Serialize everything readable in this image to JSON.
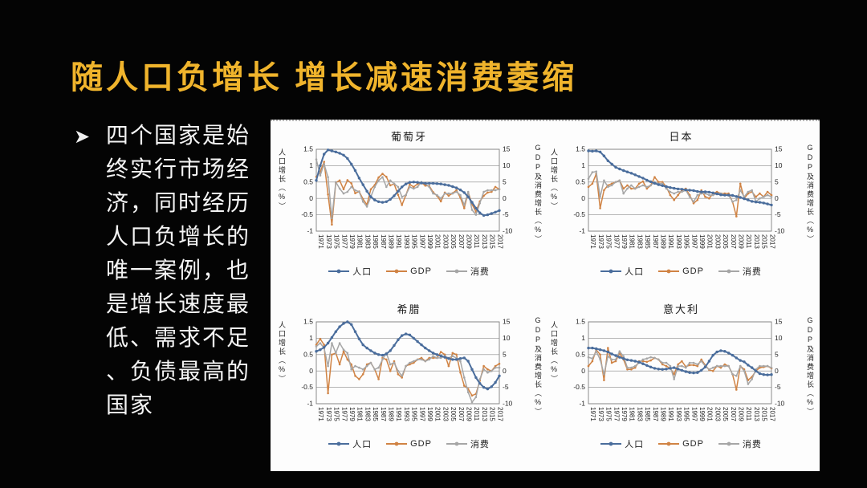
{
  "slide": {
    "title": "随人口负增长 增长减速消费萎缩",
    "note": {
      "bullet_icon": "arrow-bullet",
      "text": "四个国家是始终实行市场经济，同时经历人口负增长的唯一案例，也是增长速度最低、需求不足、负债最高的国家",
      "lines": [
        "四个国家是始",
        "终实行市场经",
        "济，同时经历",
        "人口负增长的",
        "唯一案例，也",
        "是增长速度最",
        "低、需求不足",
        "、负债最高的",
        "国家"
      ]
    }
  },
  "colors": {
    "background": "#040404",
    "title": "#F0B42C",
    "note_text": "#F4F4F4",
    "panel": "#FDFDFD",
    "pop": "#4A6D9C",
    "gdp": "#D08344",
    "cons": "#A6A6A6",
    "grid": "#8C8C8C",
    "frame": "#7F7F7F",
    "chart_text": "#222222"
  },
  "legend": {
    "pop": "人口",
    "gdp": "GDP",
    "cons": "消费"
  },
  "axes": {
    "left_label": "人口增长（%）",
    "right_label": "GDP及消费增长（%）",
    "left_ticks": [
      1.5,
      1,
      0.5,
      0,
      -0.5,
      -1
    ],
    "right_ticks": [
      15,
      10,
      5,
      0,
      -5,
      -10
    ],
    "left_ylim": [
      -1,
      1.5
    ],
    "right_ylim": [
      -10,
      15
    ],
    "x_start": 1971,
    "x_end": 2018,
    "x_ticks": [
      1971,
      1973,
      1975,
      1977,
      1979,
      1981,
      1983,
      1985,
      1987,
      1989,
      1991,
      1993,
      1995,
      1997,
      1999,
      2001,
      2003,
      2005,
      2007,
      2009,
      2011,
      2013,
      2015,
      2017
    ]
  },
  "chart_data": [
    {
      "type": "line",
      "title": "葡萄牙",
      "series": [
        {
          "name": "人口",
          "axis": "left",
          "color_key": "pop",
          "values": [
            0.55,
            1.0,
            1.35,
            1.48,
            1.45,
            1.42,
            1.38,
            1.32,
            1.22,
            1.05,
            0.85,
            0.62,
            0.42,
            0.22,
            0.05,
            -0.05,
            -0.1,
            -0.12,
            -0.1,
            -0.03,
            0.08,
            0.22,
            0.35,
            0.44,
            0.49,
            0.5,
            0.49,
            0.47,
            0.46,
            0.46,
            0.46,
            0.45,
            0.44,
            0.42,
            0.4,
            0.36,
            0.32,
            0.26,
            0.18,
            0.05,
            -0.12,
            -0.3,
            -0.44,
            -0.52,
            -0.5,
            -0.46,
            -0.42,
            -0.37
          ]
        },
        {
          "name": "GDP",
          "axis": "right",
          "color_key": "gdp",
          "values": [
            6.6,
            8.1,
            11.2,
            1.2,
            -8.0,
            4.8,
            5.5,
            2.8,
            5.6,
            4.6,
            1.6,
            2.1,
            -0.2,
            -1.9,
            2.8,
            4.1,
            6.4,
            7.5,
            6.6,
            4.0,
            4.4,
            1.1,
            -2.0,
            1.0,
            4.3,
            3.5,
            4.4,
            4.8,
            3.9,
            3.8,
            1.9,
            0.8,
            -0.9,
            1.8,
            0.8,
            1.6,
            2.5,
            0.2,
            -3.0,
            1.9,
            -1.8,
            -4.1,
            -0.9,
            0.8,
            1.8,
            2.0,
            3.5,
            2.8
          ]
        },
        {
          "name": "消费",
          "axis": "right",
          "color_key": "cons",
          "values": [
            11.9,
            7.0,
            10.5,
            6.5,
            -6.0,
            5.0,
            3.0,
            1.5,
            2.0,
            3.5,
            2.5,
            2.0,
            -1.0,
            -2.5,
            0.5,
            3.5,
            5.5,
            6.5,
            3.5,
            5.5,
            4.5,
            3.5,
            0.5,
            1.0,
            3.5,
            3.0,
            3.5,
            5.0,
            4.5,
            3.5,
            1.5,
            1.0,
            0.0,
            1.5,
            1.5,
            1.5,
            2.0,
            1.0,
            -2.0,
            2.0,
            -3.5,
            -5.0,
            -1.5,
            2.0,
            2.5,
            2.5,
            2.5,
            2.8
          ]
        }
      ]
    },
    {
      "type": "line",
      "title": "日本",
      "series": [
        {
          "name": "人口",
          "axis": "left",
          "color_key": "pop",
          "values": [
            1.45,
            1.44,
            1.45,
            1.42,
            1.3,
            1.15,
            1.05,
            0.95,
            0.9,
            0.85,
            0.81,
            0.77,
            0.72,
            0.67,
            0.62,
            0.56,
            0.51,
            0.46,
            0.42,
            0.39,
            0.36,
            0.33,
            0.31,
            0.29,
            0.28,
            0.26,
            0.25,
            0.24,
            0.21,
            0.2,
            0.2,
            0.19,
            0.17,
            0.14,
            0.11,
            0.1,
            0.1,
            0.09,
            0.06,
            0.03,
            -0.01,
            -0.05,
            -0.09,
            -0.11,
            -0.12,
            -0.14,
            -0.17,
            -0.2
          ]
        },
        {
          "name": "GDP",
          "axis": "right",
          "color_key": "gdp",
          "values": [
            3.5,
            4.5,
            7.5,
            -3.0,
            2.5,
            4.0,
            4.5,
            5.0,
            5.5,
            3.0,
            4.0,
            3.0,
            3.0,
            4.5,
            5.2,
            3.0,
            4.0,
            6.5,
            5.0,
            5.0,
            3.5,
            1.0,
            -0.5,
            1.0,
            2.5,
            3.0,
            1.0,
            -1.5,
            -0.5,
            2.5,
            0.5,
            0.0,
            1.5,
            2.0,
            1.5,
            1.5,
            1.5,
            -1.0,
            -5.5,
            4.5,
            0.0,
            1.5,
            2.0,
            0.5,
            1.5,
            0.5,
            2.0,
            1.0
          ]
        },
        {
          "name": "消费",
          "axis": "right",
          "color_key": "cons",
          "values": [
            6.0,
            8.0,
            8.2,
            0.5,
            5.5,
            3.5,
            4.0,
            5.0,
            5.5,
            1.5,
            3.0,
            4.0,
            3.0,
            3.5,
            4.0,
            3.5,
            4.0,
            5.0,
            4.5,
            4.5,
            3.0,
            2.0,
            1.5,
            2.0,
            2.0,
            2.5,
            0.5,
            -1.0,
            1.0,
            1.5,
            1.5,
            1.0,
            1.0,
            1.5,
            1.5,
            1.0,
            1.0,
            -1.0,
            -0.5,
            2.5,
            0.5,
            2.0,
            2.5,
            -1.0,
            0.0,
            0.5,
            1.0,
            0.5
          ]
        }
      ]
    },
    {
      "type": "line",
      "title": "希腊",
      "series": [
        {
          "name": "人口",
          "axis": "left",
          "color_key": "pop",
          "values": [
            0.6,
            0.65,
            0.72,
            0.85,
            1.02,
            1.2,
            1.35,
            1.45,
            1.5,
            1.42,
            1.2,
            0.98,
            0.8,
            0.7,
            0.62,
            0.55,
            0.5,
            0.48,
            0.52,
            0.62,
            0.78,
            0.95,
            1.08,
            1.13,
            1.1,
            1.0,
            0.9,
            0.8,
            0.7,
            0.62,
            0.55,
            0.5,
            0.46,
            0.42,
            0.38,
            0.35,
            0.35,
            0.38,
            0.4,
            0.3,
            0.05,
            -0.2,
            -0.38,
            -0.5,
            -0.55,
            -0.48,
            -0.35,
            -0.15
          ]
        },
        {
          "name": "GDP",
          "axis": "right",
          "color_key": "gdp",
          "values": [
            8.0,
            9.8,
            8.0,
            -6.8,
            5.0,
            5.5,
            2.0,
            6.0,
            3.5,
            2.0,
            -1.5,
            -2.5,
            -1.0,
            2.0,
            2.5,
            0.5,
            -2.5,
            4.0,
            3.5,
            0.0,
            3.0,
            -1.0,
            -2.0,
            1.5,
            2.0,
            2.5,
            3.5,
            4.0,
            3.0,
            4.0,
            4.0,
            4.0,
            5.8,
            5.0,
            1.5,
            5.5,
            5.0,
            -0.5,
            -4.5,
            -5.5,
            -7.5,
            -7.0,
            -3.0,
            1.5,
            0.5,
            0.0,
            1.5,
            2.2
          ]
        },
        {
          "name": "消费",
          "axis": "right",
          "color_key": "cons",
          "values": [
            7.5,
            8.5,
            7.0,
            1.5,
            8.5,
            5.5,
            8.5,
            6.5,
            5.5,
            0.5,
            1.5,
            1.0,
            0.5,
            1.5,
            2.5,
            0.5,
            1.0,
            3.5,
            5.5,
            2.0,
            2.5,
            0.0,
            -1.5,
            1.5,
            2.5,
            3.0,
            3.5,
            3.5,
            3.0,
            3.5,
            4.5,
            4.0,
            4.0,
            4.5,
            4.0,
            4.5,
            4.0,
            3.0,
            -2.0,
            -6.5,
            -9.5,
            -8.0,
            -2.5,
            0.5,
            -0.5,
            0.0,
            1.0,
            1.0
          ]
        }
      ]
    },
    {
      "type": "line",
      "title": "意大利",
      "series": [
        {
          "name": "人口",
          "axis": "left",
          "color_key": "pop",
          "values": [
            0.7,
            0.7,
            0.68,
            0.65,
            0.62,
            0.58,
            0.52,
            0.47,
            0.42,
            0.38,
            0.34,
            0.32,
            0.3,
            0.27,
            0.22,
            0.17,
            0.12,
            0.08,
            0.06,
            0.05,
            0.06,
            0.08,
            0.1,
            0.06,
            0.02,
            -0.02,
            -0.05,
            -0.06,
            -0.05,
            0.02,
            0.12,
            0.3,
            0.48,
            0.58,
            0.62,
            0.6,
            0.55,
            0.48,
            0.4,
            0.32,
            0.28,
            0.18,
            0.1,
            0.0,
            -0.08,
            -0.11,
            -0.12,
            -0.11
          ]
        },
        {
          "name": "GDP",
          "axis": "right",
          "color_key": "gdp",
          "values": [
            1.5,
            3.0,
            6.5,
            5.0,
            -2.8,
            7.0,
            2.5,
            3.0,
            5.5,
            3.5,
            0.5,
            0.5,
            1.0,
            3.0,
            3.0,
            2.8,
            3.2,
            4.0,
            3.5,
            2.0,
            1.5,
            0.8,
            -1.0,
            2.0,
            3.0,
            1.3,
            1.8,
            1.8,
            1.5,
            3.5,
            1.8,
            0.3,
            0.0,
            1.5,
            1.0,
            2.0,
            1.5,
            -1.0,
            -5.7,
            1.5,
            0.5,
            -2.8,
            -1.8,
            0.0,
            1.0,
            1.2,
            1.5,
            0.8
          ]
        },
        {
          "name": "消费",
          "axis": "right",
          "color_key": "cons",
          "values": [
            4.2,
            3.8,
            6.0,
            3.5,
            -1.0,
            4.5,
            3.5,
            3.5,
            6.0,
            4.5,
            1.0,
            1.0,
            1.5,
            2.5,
            3.5,
            3.8,
            4.2,
            4.0,
            3.5,
            2.5,
            2.5,
            1.5,
            -2.5,
            1.5,
            1.5,
            1.0,
            2.5,
            2.5,
            2.0,
            3.0,
            1.5,
            0.5,
            1.0,
            1.5,
            1.5,
            1.5,
            1.5,
            -1.0,
            -1.5,
            1.5,
            0.0,
            -4.0,
            -2.5,
            0.5,
            1.5,
            1.5,
            1.5,
            1.0
          ]
        }
      ]
    }
  ]
}
